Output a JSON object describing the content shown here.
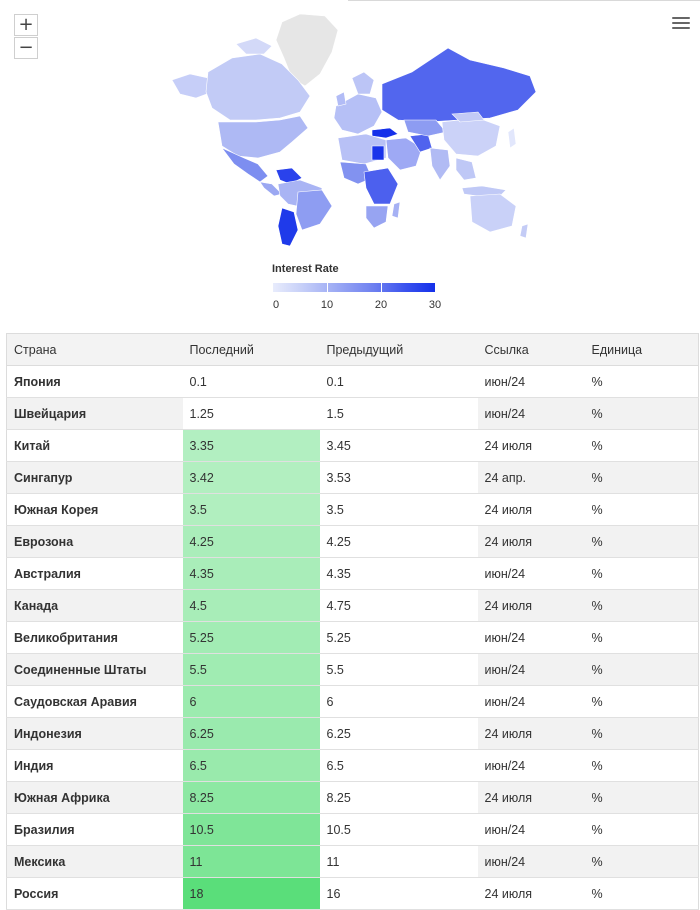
{
  "map": {
    "zoom_in_label": "+",
    "zoom_out_label": "−",
    "menu_icon": "hamburger-menu-icon",
    "legend": {
      "title": "Interest Rate",
      "min": 0,
      "max": 30,
      "ticks": [
        "0",
        "10",
        "20",
        "30"
      ],
      "color_low": "#e8ecfc",
      "color_high": "#1430ea"
    }
  },
  "table": {
    "headers": [
      "Страна",
      "Последний",
      "Предыдущий",
      "Ссылка",
      "Единица"
    ],
    "rows": [
      {
        "country": "Япония",
        "last": "0.1",
        "previous": "0.1",
        "reference": "июн/24",
        "unit": "%"
      },
      {
        "country": "Швейцария",
        "last": "1.25",
        "previous": "1.5",
        "reference": "июн/24",
        "unit": "%"
      },
      {
        "country": "Китай",
        "last": "3.35",
        "previous": "3.45",
        "reference": "24 июля",
        "unit": "%"
      },
      {
        "country": "Сингапур",
        "last": "3.42",
        "previous": "3.53",
        "reference": "24 апр.",
        "unit": "%"
      },
      {
        "country": "Южная Корея",
        "last": "3.5",
        "previous": "3.5",
        "reference": "24 июля",
        "unit": "%"
      },
      {
        "country": "Еврозона",
        "last": "4.25",
        "previous": "4.25",
        "reference": "24 июля",
        "unit": "%"
      },
      {
        "country": "Австралия",
        "last": "4.35",
        "previous": "4.35",
        "reference": "июн/24",
        "unit": "%"
      },
      {
        "country": "Канада",
        "last": "4.5",
        "previous": "4.75",
        "reference": "24 июля",
        "unit": "%"
      },
      {
        "country": "Великобритания",
        "last": "5.25",
        "previous": "5.25",
        "reference": "июн/24",
        "unit": "%"
      },
      {
        "country": "Соединенные Штаты",
        "last": "5.5",
        "previous": "5.5",
        "reference": "июн/24",
        "unit": "%"
      },
      {
        "country": "Саудовская Аравия",
        "last": "6",
        "previous": "6",
        "reference": "июн/24",
        "unit": "%"
      },
      {
        "country": "Индонезия",
        "last": "6.25",
        "previous": "6.25",
        "reference": "24 июля",
        "unit": "%"
      },
      {
        "country": "Индия",
        "last": "6.5",
        "previous": "6.5",
        "reference": "июн/24",
        "unit": "%"
      },
      {
        "country": "Южная Африка",
        "last": "8.25",
        "previous": "8.25",
        "reference": "24 июля",
        "unit": "%"
      },
      {
        "country": "Бразилия",
        "last": "10.5",
        "previous": "10.5",
        "reference": "июн/24",
        "unit": "%"
      },
      {
        "country": "Мексика",
        "last": "11",
        "previous": "11",
        "reference": "июн/24",
        "unit": "%"
      },
      {
        "country": "Россия",
        "last": "18",
        "previous": "16",
        "reference": "24 июля",
        "unit": "%"
      }
    ]
  }
}
